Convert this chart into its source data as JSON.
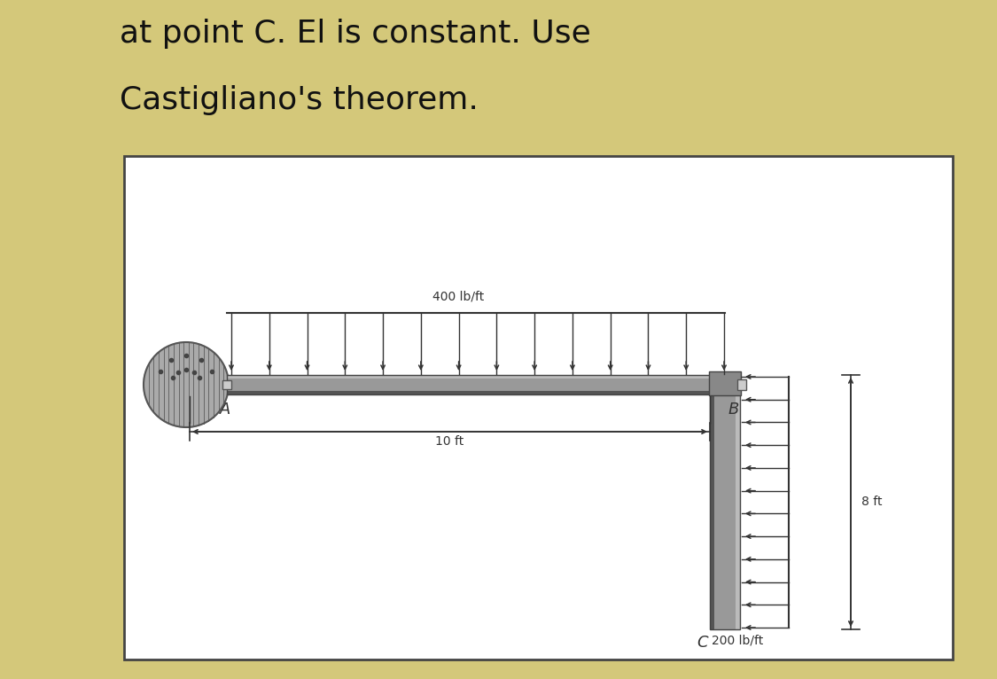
{
  "background_color": "#d4c87a",
  "diagram_bg": "#ffffff",
  "text_line1": "at point C. El is constant. Use",
  "text_line2": "Castigliano's theorem.",
  "text_fontsize": 26,
  "text_color": "#111111",
  "label_400": "400 lb/ft",
  "label_10ft": "10 ft",
  "label_8ft": "8 ft",
  "label_200": "200 lb/ft",
  "label_A": "A",
  "label_B": "B",
  "label_C": "C",
  "beam_color_dark": "#7a7a7a",
  "beam_color_mid": "#999999",
  "beam_color_light": "#bbbbbb",
  "arrow_color": "#333333",
  "wall_fill": "#aaaaaa",
  "wall_dot": "#555555",
  "dim_color": "#333333"
}
